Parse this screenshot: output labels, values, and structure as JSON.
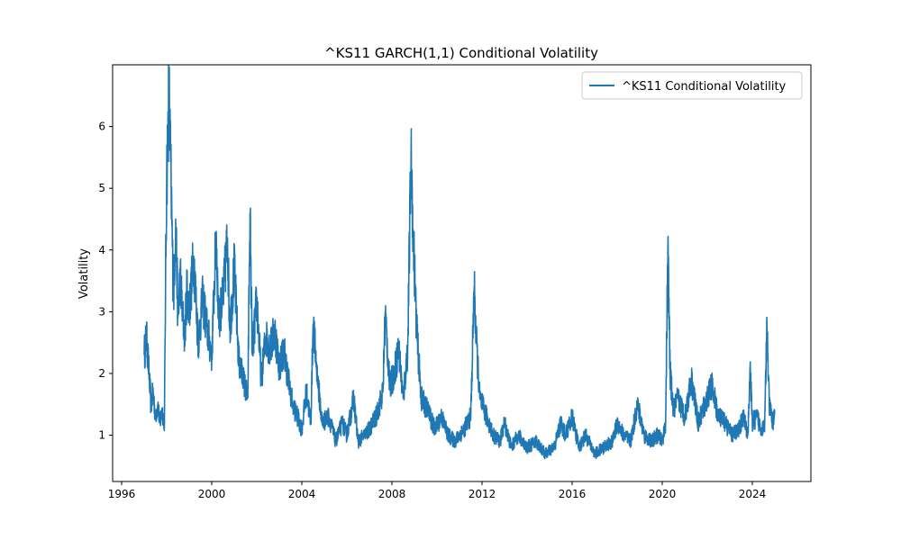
{
  "chart_data": {
    "type": "line",
    "title": "^KS11 GARCH(1,1) Conditional Volatility",
    "xlabel": "",
    "ylabel": "Volatility",
    "xlim": [
      1995.6,
      2026.6
    ],
    "ylim": [
      0.25,
      7.0
    ],
    "x_ticks": [
      1996,
      2000,
      2004,
      2008,
      2012,
      2016,
      2020,
      2024
    ],
    "y_ticks": [
      1,
      2,
      3,
      4,
      5,
      6
    ],
    "grid": false,
    "legend_position": "upper right",
    "series": [
      {
        "name": "^KS11 Conditional Volatility",
        "color": "#1f77b4",
        "x": [
          1997.0,
          1997.1,
          1997.2,
          1997.3,
          1997.4,
          1997.5,
          1997.6,
          1997.7,
          1997.8,
          1997.9,
          1997.95,
          1998.0,
          1998.05,
          1998.1,
          1998.2,
          1998.3,
          1998.4,
          1998.5,
          1998.6,
          1998.7,
          1998.8,
          1998.9,
          1999.0,
          1999.2,
          1999.4,
          1999.6,
          1999.8,
          2000.0,
          2000.2,
          2000.3,
          2000.5,
          2000.7,
          2000.8,
          2001.0,
          2001.2,
          2001.4,
          2001.6,
          2001.7,
          2001.8,
          2002.0,
          2002.2,
          2002.4,
          2002.6,
          2002.8,
          2003.0,
          2003.2,
          2003.4,
          2003.6,
          2003.8,
          2004.0,
          2004.2,
          2004.4,
          2004.5,
          2004.7,
          2004.9,
          2005.2,
          2005.5,
          2005.8,
          2006.0,
          2006.3,
          2006.5,
          2006.8,
          2007.0,
          2007.3,
          2007.6,
          2007.7,
          2007.9,
          2008.1,
          2008.3,
          2008.5,
          2008.7,
          2008.85,
          2008.95,
          2009.1,
          2009.3,
          2009.6,
          2009.9,
          2010.2,
          2010.5,
          2010.8,
          2011.2,
          2011.5,
          2011.65,
          2011.75,
          2011.9,
          2012.2,
          2012.5,
          2012.8,
          2013.0,
          2013.3,
          2013.6,
          2014.0,
          2014.4,
          2014.8,
          2015.2,
          2015.5,
          2015.7,
          2016.0,
          2016.3,
          2016.6,
          2017.0,
          2017.4,
          2017.8,
          2018.0,
          2018.3,
          2018.6,
          2018.9,
          2019.2,
          2019.5,
          2019.8,
          2020.0,
          2020.15,
          2020.25,
          2020.35,
          2020.5,
          2020.7,
          2021.0,
          2021.3,
          2021.6,
          2021.9,
          2022.2,
          2022.5,
          2022.8,
          2023.1,
          2023.4,
          2023.6,
          2023.8,
          2023.9,
          2024.0,
          2024.2,
          2024.4,
          2024.55,
          2024.65,
          2024.75,
          2024.9,
          2025.0
        ],
        "values": [
          2.3,
          2.6,
          2.1,
          1.5,
          1.7,
          1.3,
          1.5,
          1.2,
          1.4,
          1.2,
          3.5,
          5.2,
          5.8,
          6.6,
          5.0,
          3.2,
          4.5,
          2.9,
          3.6,
          3.0,
          2.6,
          3.4,
          3.0,
          3.9,
          2.5,
          3.2,
          2.7,
          2.3,
          4.3,
          2.9,
          3.2,
          4.2,
          2.7,
          3.7,
          2.2,
          1.9,
          1.6,
          4.6,
          2.3,
          3.2,
          1.9,
          2.6,
          2.4,
          2.7,
          2.1,
          2.4,
          1.9,
          1.5,
          1.3,
          1.1,
          1.7,
          1.2,
          2.8,
          1.9,
          1.2,
          1.3,
          0.9,
          1.2,
          1.0,
          1.6,
          0.9,
          1.0,
          1.1,
          1.3,
          1.7,
          3.0,
          1.8,
          2.0,
          2.4,
          1.6,
          2.4,
          5.6,
          4.2,
          2.7,
          1.6,
          1.4,
          1.1,
          1.3,
          1.0,
          0.9,
          1.1,
          1.3,
          3.4,
          2.5,
          1.6,
          1.3,
          1.0,
          0.9,
          1.2,
          0.8,
          1.0,
          0.8,
          0.9,
          0.7,
          0.8,
          1.2,
          1.0,
          1.3,
          0.8,
          1.0,
          0.7,
          0.8,
          0.9,
          1.2,
          1.0,
          0.9,
          1.5,
          1.0,
          0.9,
          1.0,
          0.9,
          1.2,
          4.0,
          2.0,
          1.4,
          1.6,
          1.3,
          1.9,
          1.2,
          1.5,
          1.8,
          1.3,
          1.2,
          1.0,
          1.1,
          1.3,
          1.0,
          2.1,
          1.2,
          1.3,
          1.1,
          1.2,
          2.8,
          1.5,
          1.2,
          1.4
        ]
      }
    ]
  }
}
